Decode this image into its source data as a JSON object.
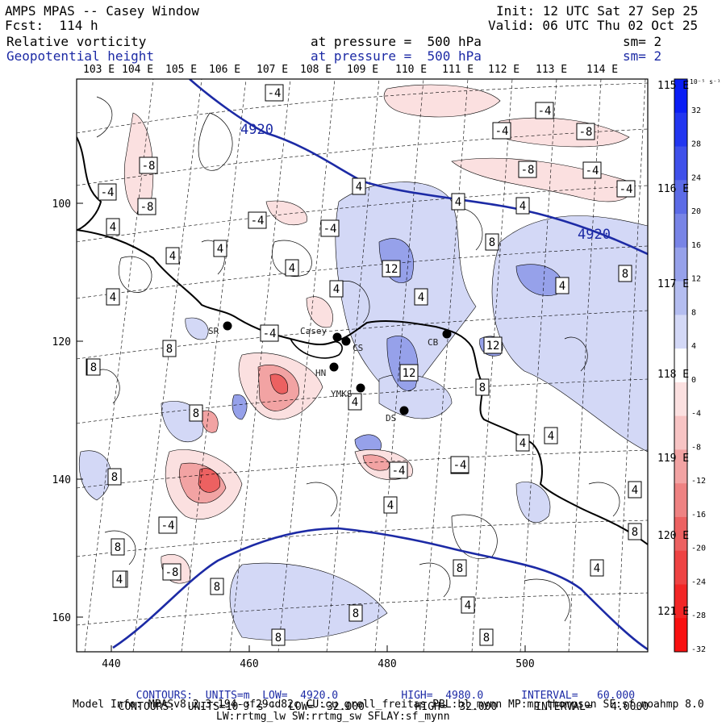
{
  "header": {
    "title": "AMPS MPAS -- Casey Window",
    "forecast": "Fcst:  114 h",
    "init": "Init: 12 UTC Sat 27 Sep 25",
    "valid": "Valid: 06 UTC Thu 02 Oct 25",
    "field1": {
      "name": "Relative vorticity",
      "pressure": "at pressure =  500 hPa",
      "sm": "sm= 2"
    },
    "field2": {
      "name": "Geopotential height",
      "pressure": "at pressure =  500 hPa",
      "sm": "sm= 2"
    }
  },
  "map": {
    "top_lon_labels": [
      "103 E",
      "104 E",
      "105 E",
      "106 E",
      "107 E",
      "108 E",
      "109 E",
      "110 E",
      "111 E",
      "112 E",
      "113 E",
      "114 E"
    ],
    "right_lon_labels": [
      "115 E",
      "116 E",
      "117 E",
      "118 E",
      "119 E",
      "120 E",
      "121 E"
    ],
    "x_ticks": [
      "440",
      "460",
      "480",
      "500"
    ],
    "y_ticks": [
      "100",
      "120",
      "140",
      "160"
    ],
    "stations": [
      "SR",
      "Casey",
      "CS",
      "HN",
      "YMKS",
      "DS",
      "CB"
    ],
    "height_contour_labels": [
      "4920",
      "4920"
    ],
    "vorticity_labels": [
      "-4",
      "-4",
      "-4",
      "-8",
      "-8",
      "-8",
      "-4",
      "-8",
      "-4",
      "-4",
      "-4",
      "-4",
      "-4",
      "-4",
      "-8",
      "-4",
      "-4",
      "4",
      "4",
      "4",
      "4",
      "4",
      "4",
      "4",
      "4",
      "4",
      "4",
      "4",
      "4",
      "4",
      "4",
      "4",
      "4",
      "4",
      "4",
      "8",
      "8",
      "8",
      "8",
      "8",
      "8",
      "8",
      "8",
      "8",
      "8",
      "8",
      "8",
      "8",
      "8",
      "12",
      "12",
      "12",
      "-4",
      "4",
      "8",
      "4"
    ]
  },
  "colorbar": {
    "unit": "10⁻⁵ s⁻¹",
    "ticks": [
      "32",
      "28",
      "24",
      "20",
      "16",
      "12",
      "8",
      "4",
      "0",
      "-4",
      "-8",
      "-12",
      "-16",
      "-20",
      "-24",
      "-28",
      "-32"
    ],
    "colors": [
      "#0a1ef5",
      "#2236f0",
      "#3f50ea",
      "#5c6be6",
      "#7884e6",
      "#96a1ea",
      "#b4bdf0",
      "#d3d8f6",
      "#ffffff",
      "#fbe0e0",
      "#f7c4c4",
      "#f2a3a3",
      "#ee8282",
      "#ec6161",
      "#ee4343",
      "#f22626",
      "#f81010"
    ]
  },
  "footer": {
    "line1": {
      "label": "CONTOURS:",
      "units": "UNITS=m",
      "low": "LOW=  4920.0",
      "high": "HIGH=  4980.0",
      "interval": "INTERVAL=   60.000"
    },
    "line2": {
      "label": "CONTOURS:",
      "units": "UNITS=10⁻⁵ s⁻¹",
      "low": "LOW= -32.000",
      "high": "HIGH=  32.000",
      "interval": "INTERVAL=   4.0000"
    },
    "model_info": "Model Info: MPASv8.2.3-194-gf29cd82c CU:cu_grell_freitas PBL:bl_mynn MP:mp_thompson SF:sf_noahmp 8.0",
    "model_info2": "LW:rrtmg_lw SW:rrtmg_sw SFLAY:sf_mynn"
  }
}
